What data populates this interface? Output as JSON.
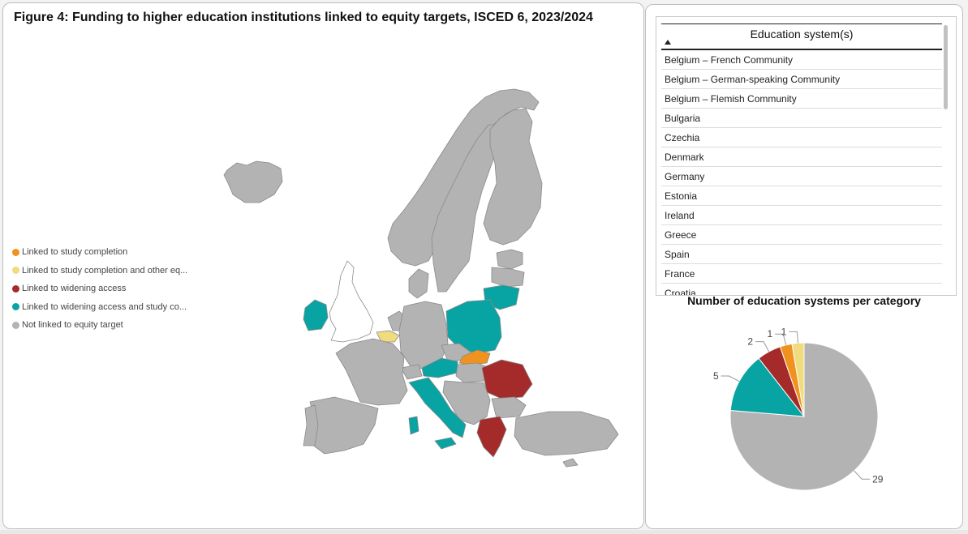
{
  "title": "Figure 4: Funding to higher education institutions linked to equity targets, ISCED 6, 2023/2024",
  "legend": [
    {
      "label": "Linked to study completion",
      "color": "#F0921E"
    },
    {
      "label": "Linked to study completion and other eq...",
      "color": "#F0DB7E"
    },
    {
      "label": "Linked to widening access",
      "color": "#A52A2A"
    },
    {
      "label": "Linked to widening access and study co...",
      "color": "#08A3A3"
    },
    {
      "label": "Not linked to equity target",
      "color": "#B3B3B3"
    }
  ],
  "table": {
    "header": "Education system(s)",
    "rows": [
      "Belgium – French Community",
      "Belgium – German-speaking Community",
      "Belgium – Flemish Community",
      "Bulgaria",
      "Czechia",
      "Denmark",
      "Germany",
      "Estonia",
      "Ireland",
      "Greece",
      "Spain",
      "France",
      "Croatia"
    ]
  },
  "pie_title": "Number of education systems per category",
  "chart_data": {
    "type": "pie",
    "title": "Number of education systems per category",
    "slices": [
      {
        "label": "Not linked to equity target",
        "value": 29,
        "color": "#B3B3B3"
      },
      {
        "label": "Linked to widening access and study co...",
        "value": 5,
        "color": "#08A3A3"
      },
      {
        "label": "Linked to widening access",
        "value": 2,
        "color": "#A52A2A"
      },
      {
        "label": "Linked to study completion",
        "value": 1,
        "color": "#F0921E"
      },
      {
        "label": "Linked to study completion and other eq...",
        "value": 1,
        "color": "#F0DB7E"
      }
    ]
  }
}
